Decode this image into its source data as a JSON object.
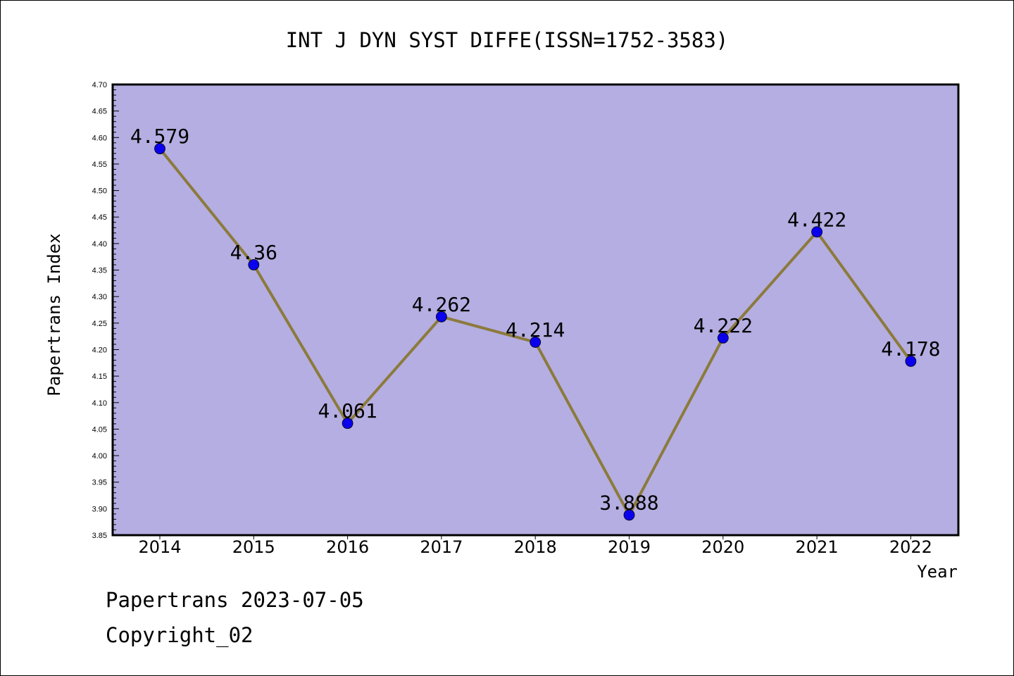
{
  "chart_data": {
    "type": "line",
    "title": "INT J DYN SYST DIFFE(ISSN=1752-3583)",
    "xlabel": "Year",
    "ylabel": "Papertrans Index",
    "categories": [
      "2014",
      "2015",
      "2016",
      "2017",
      "2018",
      "2019",
      "2020",
      "2021",
      "2022"
    ],
    "values": [
      4.579,
      4.36,
      4.061,
      4.262,
      4.214,
      3.888,
      4.222,
      4.422,
      4.178
    ],
    "data_labels": [
      "4.579",
      "4.36",
      "4.061",
      "4.262",
      "4.214",
      "3.888",
      "4.222",
      "4.422",
      "4.178"
    ],
    "ylim": [
      3.85,
      4.7
    ],
    "yticks": [
      "3.85",
      "3.90",
      "3.95",
      "4.00",
      "4.05",
      "4.10",
      "4.15",
      "4.20",
      "4.25",
      "4.30",
      "4.35",
      "4.40",
      "4.45",
      "4.50",
      "4.55",
      "4.60",
      "4.65",
      "4.70"
    ],
    "grid": false,
    "colors": {
      "plot_background": "#b4aee2",
      "line": "#8c7a3c",
      "marker": "#0a00ee"
    }
  },
  "footer": {
    "date_line": "Papertrans 2023-07-05",
    "copyright": "Copyright_02"
  }
}
